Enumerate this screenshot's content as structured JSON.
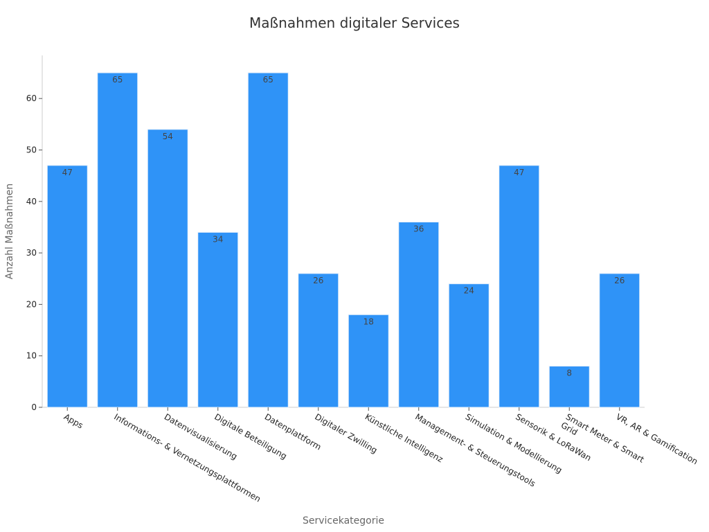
{
  "chart_data": {
    "type": "bar",
    "title": "Maßnahmen digitaler Services",
    "xlabel": "Servicekategorie",
    "ylabel": "Anzahl Maßnahmen",
    "ylim": [
      0,
      68
    ],
    "yticks": [
      0,
      10,
      20,
      30,
      40,
      50,
      60
    ],
    "grid": false,
    "bar_color": "#2f93f7",
    "categories": [
      [
        "Apps"
      ],
      [
        "Informations- & Vernetzungsplattformen"
      ],
      [
        "Datenvisualisierung"
      ],
      [
        "Digitale Beteiligung"
      ],
      [
        "Datenplattform"
      ],
      [
        "Digitaler Zwilling"
      ],
      [
        "Künstliche Intelligenz"
      ],
      [
        "Management- & Steuerungstools"
      ],
      [
        "Simulation & Modellierung"
      ],
      [
        "Sensorik & LoRaWan"
      ],
      [
        "Smart Meter & Smart",
        "Grid"
      ],
      [
        "VR, AR & Gamification"
      ]
    ],
    "values": [
      47,
      65,
      54,
      34,
      65,
      26,
      18,
      36,
      24,
      47,
      8,
      26
    ]
  }
}
